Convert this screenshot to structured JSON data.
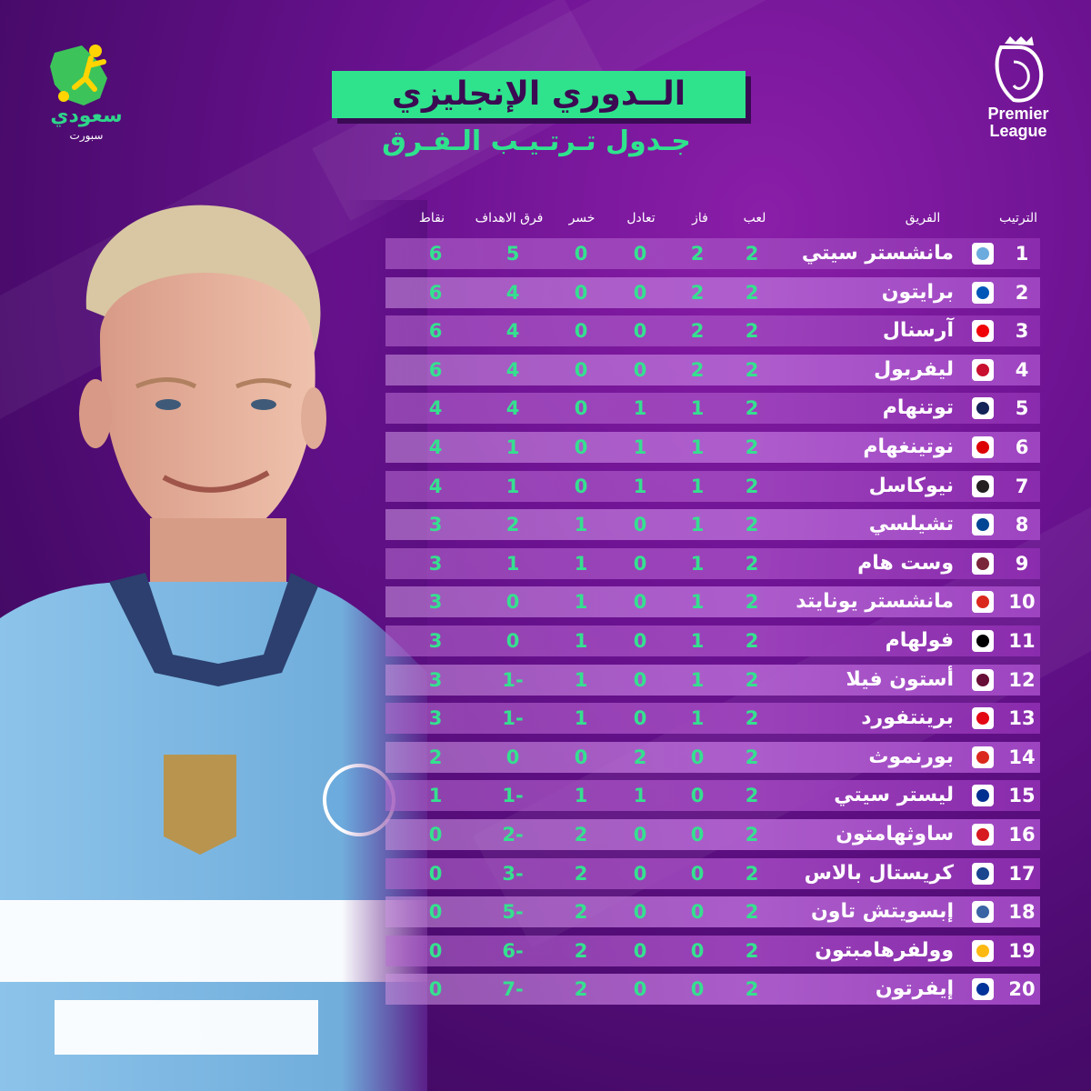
{
  "brand": {
    "name": "سعودي",
    "sub": "سبورت"
  },
  "league_logo": {
    "line1": "Premier",
    "line2": "League"
  },
  "title": "الــدوري الإنجليزي",
  "subtitle": "جـدول تـرتـيـب الـفـرق",
  "headers": {
    "rank": "الترتيب",
    "team": "الفريق",
    "played": "لعب",
    "won": "فاز",
    "drawn": "تعادل",
    "lost": "خسر",
    "gd": "فرق الاهداف",
    "points": "نقاط"
  },
  "rows": [
    {
      "rank": "1",
      "team": "مانشستر سيتي",
      "played": "2",
      "won": "2",
      "drawn": "0",
      "lost": "0",
      "gd": "5",
      "points": "6",
      "crest": "#6cabdd"
    },
    {
      "rank": "2",
      "team": "برايتون",
      "played": "2",
      "won": "2",
      "drawn": "0",
      "lost": "0",
      "gd": "4",
      "points": "6",
      "crest": "#0057b8"
    },
    {
      "rank": "3",
      "team": "آرسنال",
      "played": "2",
      "won": "2",
      "drawn": "0",
      "lost": "0",
      "gd": "4",
      "points": "6",
      "crest": "#ef0107"
    },
    {
      "rank": "4",
      "team": "ليفربول",
      "played": "2",
      "won": "2",
      "drawn": "0",
      "lost": "0",
      "gd": "4",
      "points": "6",
      "crest": "#c8102e"
    },
    {
      "rank": "5",
      "team": "توتنهام",
      "played": "2",
      "won": "1",
      "drawn": "1",
      "lost": "0",
      "gd": "4",
      "points": "4",
      "crest": "#132257"
    },
    {
      "rank": "6",
      "team": "نوتينغهام",
      "played": "2",
      "won": "1",
      "drawn": "1",
      "lost": "0",
      "gd": "1",
      "points": "4",
      "crest": "#dd0000"
    },
    {
      "rank": "7",
      "team": "نيوكاسل",
      "played": "2",
      "won": "1",
      "drawn": "1",
      "lost": "0",
      "gd": "1",
      "points": "4",
      "crest": "#241f20"
    },
    {
      "rank": "8",
      "team": "تشيلسي",
      "played": "2",
      "won": "1",
      "drawn": "0",
      "lost": "1",
      "gd": "2",
      "points": "3",
      "crest": "#034694"
    },
    {
      "rank": "9",
      "team": "وست هام",
      "played": "2",
      "won": "1",
      "drawn": "0",
      "lost": "1",
      "gd": "1",
      "points": "3",
      "crest": "#7a263a"
    },
    {
      "rank": "10",
      "team": "مانشستر يونايتد",
      "played": "2",
      "won": "1",
      "drawn": "0",
      "lost": "1",
      "gd": "0",
      "points": "3",
      "crest": "#da291c"
    },
    {
      "rank": "11",
      "team": "فولهام",
      "played": "2",
      "won": "1",
      "drawn": "0",
      "lost": "1",
      "gd": "0",
      "points": "3",
      "crest": "#000000"
    },
    {
      "rank": "12",
      "team": "أستون فيلا",
      "played": "2",
      "won": "1",
      "drawn": "0",
      "lost": "1",
      "gd": "1-",
      "points": "3",
      "crest": "#670e36"
    },
    {
      "rank": "13",
      "team": "برينتفورد",
      "played": "2",
      "won": "1",
      "drawn": "0",
      "lost": "1",
      "gd": "1-",
      "points": "3",
      "crest": "#e30613"
    },
    {
      "rank": "14",
      "team": "بورنموث",
      "played": "2",
      "won": "0",
      "drawn": "2",
      "lost": "0",
      "gd": "0",
      "points": "2",
      "crest": "#da291c"
    },
    {
      "rank": "15",
      "team": "ليستر سيتي",
      "played": "2",
      "won": "0",
      "drawn": "1",
      "lost": "1",
      "gd": "1-",
      "points": "1",
      "crest": "#003090"
    },
    {
      "rank": "16",
      "team": "ساوثهامتون",
      "played": "2",
      "won": "0",
      "drawn": "0",
      "lost": "2",
      "gd": "2-",
      "points": "0",
      "crest": "#d71920"
    },
    {
      "rank": "17",
      "team": "كريستال بالاس",
      "played": "2",
      "won": "0",
      "drawn": "0",
      "lost": "2",
      "gd": "3-",
      "points": "0",
      "crest": "#1b458f"
    },
    {
      "rank": "18",
      "team": "إبسويتش تاون",
      "played": "2",
      "won": "0",
      "drawn": "0",
      "lost": "2",
      "gd": "5-",
      "points": "0",
      "crest": "#3a64a3"
    },
    {
      "rank": "19",
      "team": "وولفرهامبتون",
      "played": "2",
      "won": "0",
      "drawn": "0",
      "lost": "2",
      "gd": "6-",
      "points": "0",
      "crest": "#fdb913"
    },
    {
      "rank": "20",
      "team": "إيفرتون",
      "played": "2",
      "won": "0",
      "drawn": "0",
      "lost": "2",
      "gd": "7-",
      "points": "0",
      "crest": "#003399"
    }
  ],
  "colors": {
    "accent": "#2fe38d",
    "background": "#5a0f80",
    "title_text": "#3b0a52",
    "jersey": "#87bfe8"
  }
}
